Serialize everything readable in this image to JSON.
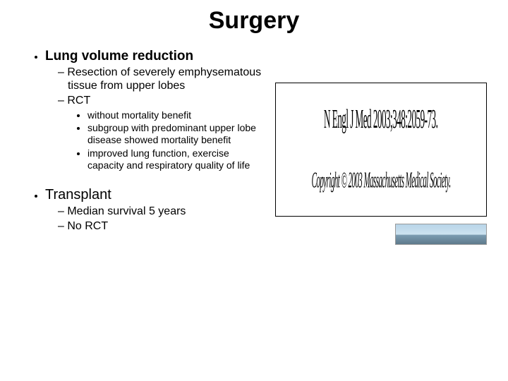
{
  "title": "Surgery",
  "bullets": {
    "b1": {
      "label": "Lung volume reduction",
      "sub1": "Resection of severely emphysematous tissue from upper lobes",
      "sub2": "RCT",
      "sub2_a": "without mortality benefit",
      "sub2_b": "subgroup with predominant upper lobe disease showed mortality benefit",
      "sub2_c": "improved lung function, exercise capacity and respiratory quality of life"
    },
    "b2": {
      "label": "Transplant",
      "sub1": "Median survival 5 years",
      "sub2": "No RCT"
    }
  },
  "citation": {
    "journal": "N Engl J Med 2003;348:2059-73.",
    "copyright": "Copyright © 2003 Massachusetts Medical Society."
  }
}
